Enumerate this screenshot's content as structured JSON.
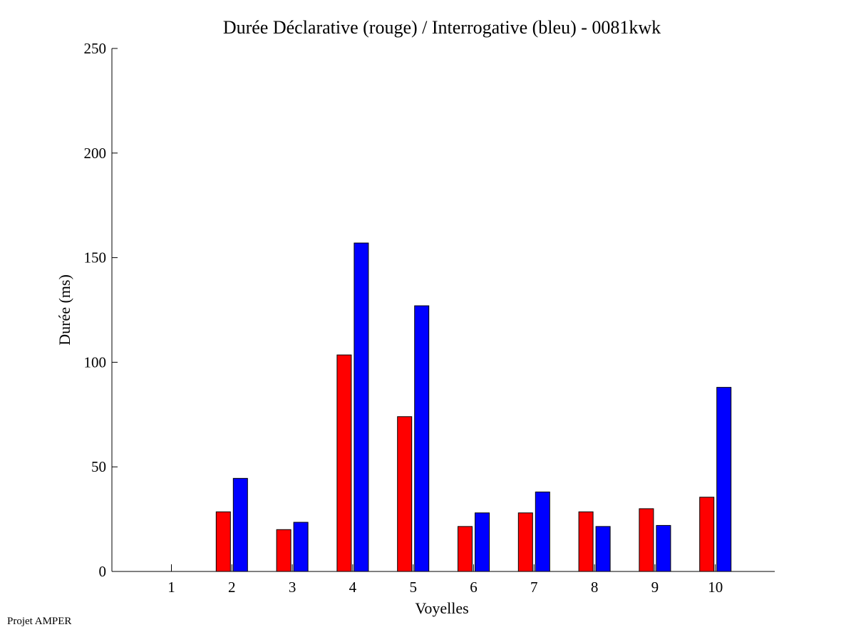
{
  "chart_data": {
    "type": "bar",
    "title": "Durée Déclarative (rouge) / Interrogative (bleu) - 0081kwk",
    "xlabel": "Voyelles",
    "ylabel": "Durée (ms)",
    "ylim": [
      0,
      250
    ],
    "yticks": [
      "0",
      "50",
      "100",
      "150",
      "200",
      "250"
    ],
    "categories": [
      "1",
      "2",
      "3",
      "4",
      "5",
      "6",
      "7",
      "8",
      "9",
      "10"
    ],
    "grid": false,
    "series": [
      {
        "color": "#ff0000",
        "values": [
          0,
          28.5,
          20,
          103.5,
          74,
          21.5,
          28,
          28.5,
          30,
          35.5
        ]
      },
      {
        "color": "#0000ff",
        "values": [
          0,
          44.5,
          23.5,
          157,
          127,
          28,
          38,
          21.5,
          22,
          88
        ]
      }
    ]
  },
  "footer": {
    "text": "Projet AMPER"
  }
}
